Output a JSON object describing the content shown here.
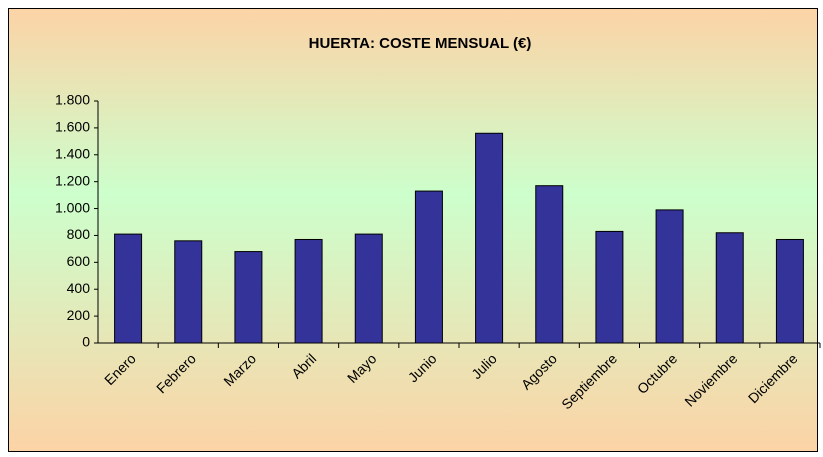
{
  "chart_data": {
    "type": "bar",
    "title": "HUERTA: COSTE MENSUAL (€)",
    "categories": [
      "Enero",
      "Febrero",
      "Marzo",
      "Abril",
      "Mayo",
      "Junio",
      "Julio",
      "Agosto",
      "Septiembre",
      "Octubre",
      "Noviembre",
      "Diciembre"
    ],
    "values": [
      810,
      760,
      680,
      770,
      810,
      1130,
      1560,
      1170,
      830,
      990,
      820,
      770
    ],
    "color": "#333399",
    "ylim": [
      0,
      1800
    ],
    "yticks": [
      0,
      200,
      400,
      600,
      800,
      {
        "value": 1000,
        "label": "1.000"
      },
      {
        "value": 1200,
        "label": "1.200"
      },
      {
        "value": 1400,
        "label": "1.400"
      },
      {
        "value": 1600,
        "label": "1.600"
      },
      {
        "value": 1800,
        "label": "1.800"
      }
    ],
    "grid": false
  }
}
